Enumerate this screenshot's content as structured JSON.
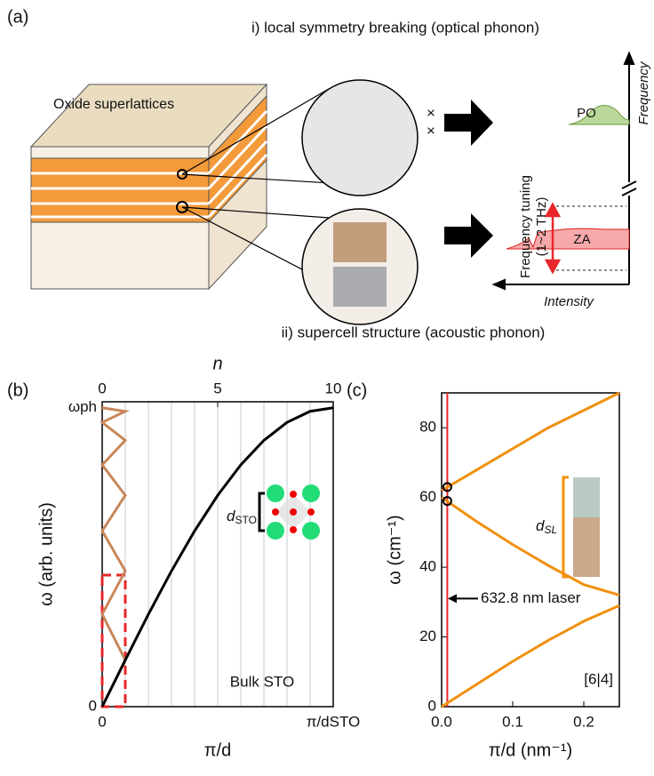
{
  "figure_a": {
    "label": "(a)",
    "top_caption": "i) local symmetry breaking (optical phonon)",
    "bottom_caption": "ii) supercell structure (acoustic phonon)",
    "block_label": "Oxide superlattices",
    "tuning_label": "Frequency tuning",
    "tuning_range": "(1~2 THz)",
    "po_label": "PO",
    "za_label": "ZA",
    "frequency_axis": "Frequency",
    "intensity_axis": "Intensity",
    "cross_marks": [
      "×",
      "×"
    ]
  },
  "chart_data": [
    {
      "type": "line",
      "panel_label": "(b)",
      "xlabel": "π/d",
      "ylabel": "ω (arb. units)",
      "x2label": "n",
      "xlim": [
        0,
        10
      ],
      "xticks": [
        {
          "value": 0,
          "label": "0"
        },
        {
          "value": 10,
          "label": "π/dSTO"
        }
      ],
      "x2ticks": [
        0,
        5,
        10
      ],
      "xgrid": [
        1,
        2,
        3,
        4,
        5,
        6,
        7,
        8,
        9
      ],
      "ylim": [
        0,
        1.02
      ],
      "yticks": [
        {
          "value": 0,
          "label": "0"
        },
        {
          "value": 1,
          "label": "ωph"
        }
      ],
      "series": [
        {
          "color": "#000000",
          "x": [
            0,
            1,
            2,
            3,
            4,
            5,
            6,
            7,
            8,
            9,
            10
          ],
          "values": [
            0,
            0.156,
            0.309,
            0.454,
            0.588,
            0.707,
            0.809,
            0.891,
            0.951,
            0.988,
            1
          ]
        },
        {
          "color": "#c8875a",
          "x": [
            0,
            1,
            0,
            1,
            0,
            1,
            0,
            1,
            0,
            1,
            0
          ],
          "values": [
            0,
            0.156,
            0.309,
            0.454,
            0.588,
            0.707,
            0.809,
            0.891,
            0.951,
            0.988,
            1
          ]
        }
      ],
      "highlight_box": {
        "xlim": [
          0,
          1
        ],
        "ylim": [
          0,
          0.44
        ],
        "color": "#e8262a"
      },
      "annotations": {
        "bulk": "Bulk STO",
        "d_symbol": "d",
        "d_sub": "STO"
      }
    },
    {
      "type": "line",
      "panel_label": "(c)",
      "xlabel": "π/d (nm⁻¹)",
      "ylabel": "ω (cm⁻¹)",
      "xlim": [
        0,
        0.25
      ],
      "xticks": [
        {
          "value": 0,
          "label": "0.0"
        },
        0.1,
        0.2
      ],
      "ylim": [
        0,
        90
      ],
      "yticks": [
        0,
        20,
        40,
        60,
        80
      ],
      "x": [
        0,
        0.05,
        0.1,
        0.15,
        0.2,
        0.25
      ],
      "series": [
        {
          "color": "#f0900f",
          "values": [
            0,
            6.5,
            13,
            19,
            24.5,
            29
          ]
        },
        {
          "color": "#f0900f",
          "values": [
            60,
            53,
            46.5,
            40.5,
            35,
            32
          ]
        },
        {
          "color": "#f0900f",
          "values": [
            62,
            68,
            74,
            80,
            85,
            90
          ]
        }
      ],
      "laser_x": 0.008,
      "laser_color": "#e8262a",
      "circles_y": [
        63,
        59
      ],
      "arrow_y": 31,
      "annotations": {
        "laser": "632.8 nm  laser",
        "period": "[6|4]",
        "d_symbol": "d",
        "d_sub": "SL"
      }
    }
  ]
}
